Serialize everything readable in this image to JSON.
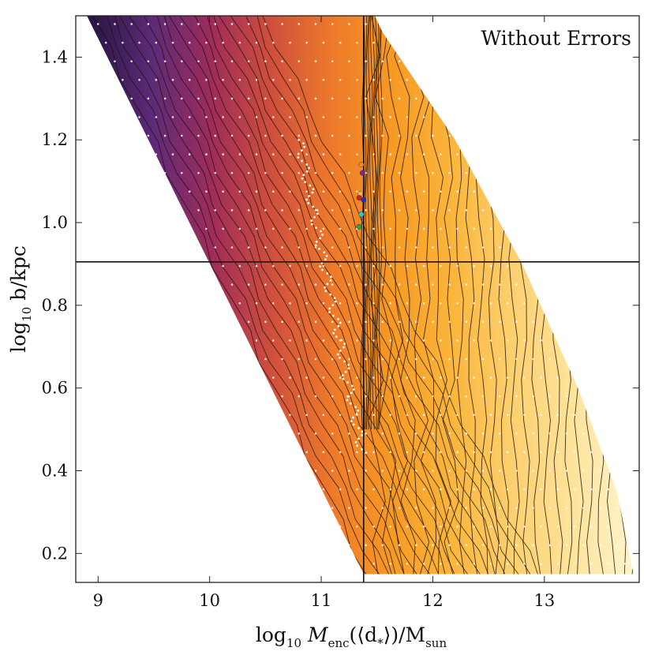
{
  "chart_data": {
    "type": "contour",
    "annotation": "Without Errors",
    "xlabel": {
      "prefix": "log",
      "sub": "10",
      "main": "M",
      "main_sub": "enc",
      "arg_open": "(⟨d",
      "arg_sub": "*",
      "arg_close": "⟩)/M",
      "denom_sub": "sun"
    },
    "ylabel": {
      "prefix": "log",
      "sub": "10",
      "rest": " b/kpc"
    },
    "xlim": [
      8.8,
      13.85
    ],
    "ylim": [
      0.13,
      1.5
    ],
    "x_ticks": [
      9,
      10,
      11,
      12,
      13
    ],
    "x_tick_labels": [
      "9",
      "10",
      "11",
      "12",
      "13"
    ],
    "y_ticks": [
      0.2,
      0.4,
      0.6,
      0.8,
      1.0,
      1.2,
      1.4
    ],
    "y_tick_labels": [
      "0.2",
      "0.4",
      "0.6",
      "0.8",
      "1.0",
      "1.2",
      "1.4"
    ],
    "reference_lines": {
      "vertical_x": 11.38,
      "horizontal_y": 0.905
    },
    "region": {
      "top_left": [
        8.9,
        1.5
      ],
      "top_right": [
        11.38,
        1.5
      ],
      "bottom_left": [
        11.38,
        0.15
      ],
      "bottom_right": [
        13.8,
        0.15
      ],
      "right_curve": [
        [
          11.55,
          1.46
        ],
        [
          12.2,
          1.2
        ],
        [
          12.8,
          0.9
        ],
        [
          13.3,
          0.6
        ],
        [
          13.65,
          0.35
        ],
        [
          13.8,
          0.15
        ]
      ],
      "left_edge_bottom": [
        11.38,
        0.15
      ],
      "left_edge_top": [
        8.9,
        1.5
      ]
    },
    "colormap": [
      "#2a1646",
      "#5e2a78",
      "#a02c5a",
      "#d0503c",
      "#ee7a2a",
      "#f79a24",
      "#fbb63c",
      "#fcd070",
      "#fde49c",
      "#fef4cc"
    ],
    "markers": [
      {
        "x": 11.36,
        "y": 1.14,
        "color": "#f08a24"
      },
      {
        "x": 11.37,
        "y": 1.12,
        "color": "#7a2a8a"
      },
      {
        "x": 11.35,
        "y": 1.07,
        "color": "#e8c040"
      },
      {
        "x": 11.34,
        "y": 1.06,
        "color": "#d02030"
      },
      {
        "x": 11.38,
        "y": 1.055,
        "color": "#2030c0"
      },
      {
        "x": 11.36,
        "y": 1.02,
        "color": "#30c8d0"
      },
      {
        "x": 11.34,
        "y": 0.99,
        "color": "#30a040"
      }
    ]
  }
}
